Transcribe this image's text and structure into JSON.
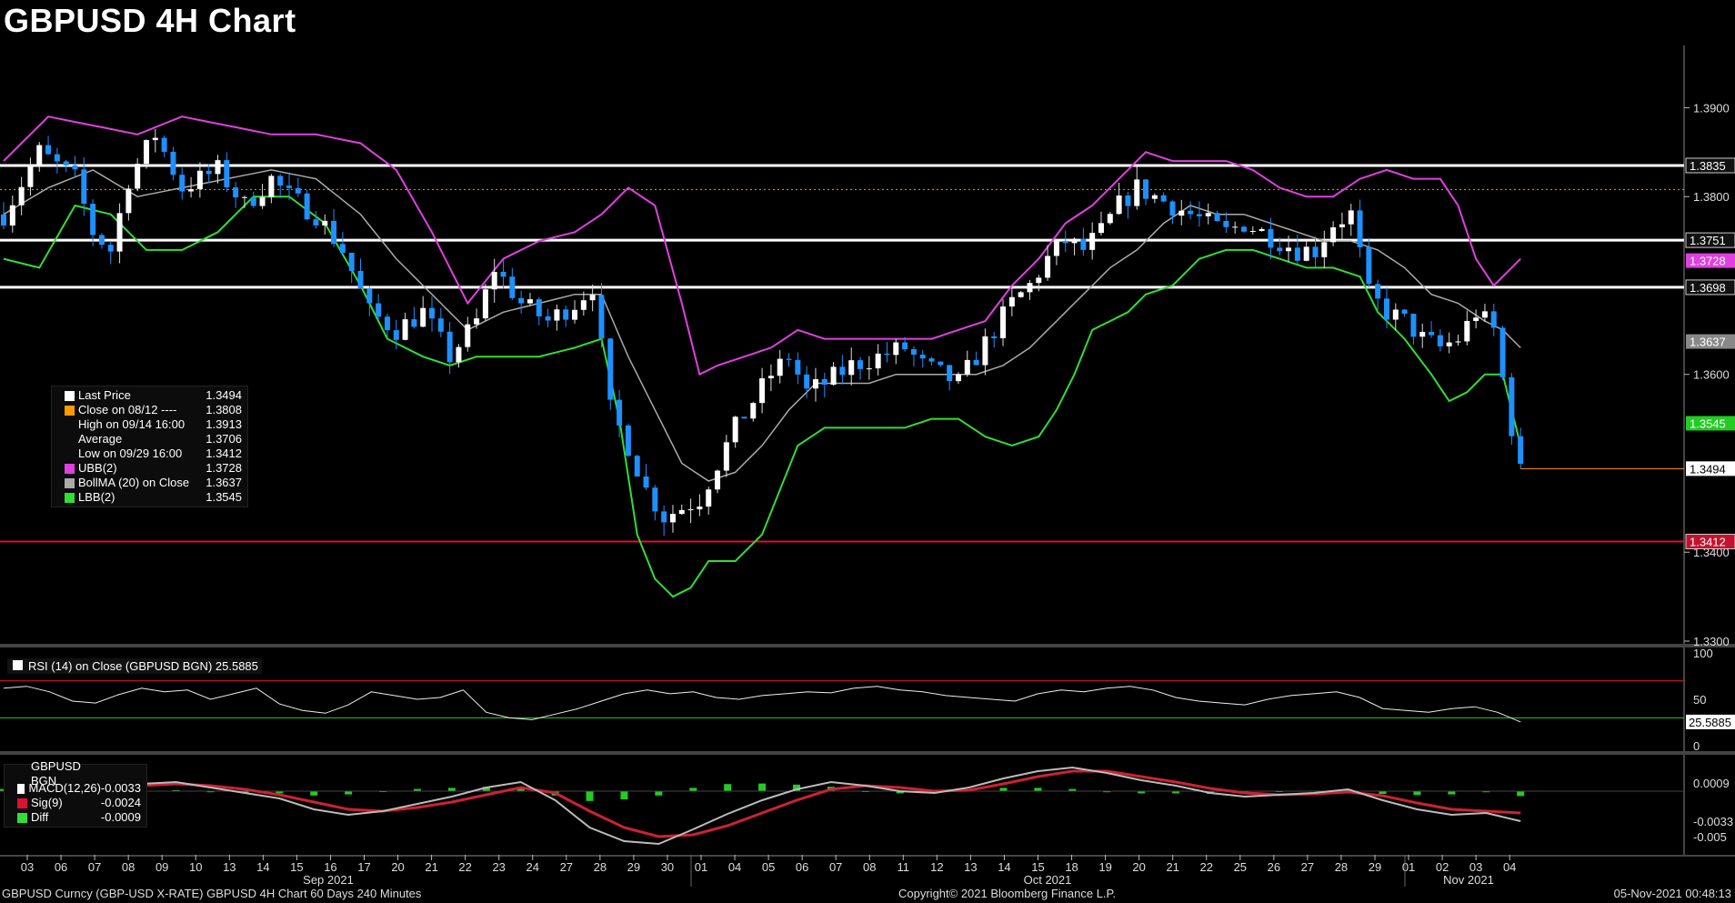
{
  "title": "GBPUSD 4H Chart",
  "footer": {
    "left": "GBPUSD Curncy (GBP-USD X-RATE) GBPUSD 4H Chart 60 Days 240 Minutes",
    "center": "Copyright© 2021 Bloomberg Finance L.P.",
    "right": "05-Nov-2021 00:48:13"
  },
  "colors": {
    "up": "#ffffff",
    "down": "#1e90ff",
    "ubb": "#e040e0",
    "lbb": "#33dd33",
    "bollma": "#aaaaaa",
    "support": "#dd1133",
    "resistance": "#ffffff",
    "close_line": "#ff9900"
  },
  "legend": [
    {
      "label": "Last Price",
      "value": "1.3494",
      "color": "#ffffff"
    },
    {
      "label": "Close on 08/12 ----",
      "value": "1.3808",
      "color": "#ff9900"
    },
    {
      "label": "High on 09/14 16:00",
      "value": "1.3913",
      "color": ""
    },
    {
      "label": "Average",
      "value": "1.3706",
      "color": ""
    },
    {
      "label": "Low on 09/29 16:00",
      "value": "1.3412",
      "color": ""
    },
    {
      "label": "UBB(2)",
      "value": "1.3728",
      "color": "#e040e0"
    },
    {
      "label": "BollMA (20)  on Close",
      "value": "1.3637",
      "color": "#aaaaaa"
    },
    {
      "label": "LBB(2)",
      "value": "1.3545",
      "color": "#33dd33"
    }
  ],
  "rsi_legend": "RSI (14)  on Close (GBPUSD BGN) 25.5885",
  "macd_legend": [
    {
      "label": "GBPUSD BGN",
      "value": "",
      "color": ""
    },
    {
      "label": "MACD(12,26)",
      "value": "-0.0033",
      "color": "#ffffff"
    },
    {
      "label": "Sig(9)",
      "value": "-0.0024",
      "color": "#dd1133"
    },
    {
      "label": "Diff",
      "value": "-0.0009",
      "color": "#33dd33"
    }
  ],
  "chart_data": {
    "type": "candlestick",
    "ylim": [
      1.33,
      1.397
    ],
    "y_ticks": [
      "1.3900",
      "1.3800",
      "1.3600",
      "1.3400",
      "1.3300"
    ],
    "x_ticks": [
      "03",
      "06",
      "07",
      "08",
      "09",
      "10",
      "13",
      "14",
      "15",
      "16",
      "17",
      "20",
      "21",
      "22",
      "23",
      "24",
      "27",
      "28",
      "29",
      "30",
      "01",
      "04",
      "05",
      "06",
      "07",
      "08",
      "11",
      "12",
      "13",
      "14",
      "15",
      "18",
      "19",
      "20",
      "21",
      "22",
      "25",
      "26",
      "27",
      "28",
      "29",
      "01",
      "02",
      "03",
      "04"
    ],
    "month_labels": [
      "Sep 2021",
      "Oct 2021",
      "Nov 2021"
    ],
    "horizontal_lines": [
      {
        "value": 1.3835,
        "label": "1.3835",
        "style": "resistance"
      },
      {
        "value": 1.3751,
        "label": "1.3751",
        "style": "resistance"
      },
      {
        "value": 1.3698,
        "label": "1.3698",
        "style": "resistance"
      },
      {
        "value": 1.3412,
        "label": "1.3412",
        "style": "support"
      },
      {
        "value": 1.3808,
        "label": "",
        "style": "close"
      }
    ],
    "price_tags": [
      {
        "value": 1.3728,
        "label": "1.3728",
        "color": "#e040e0"
      },
      {
        "value": 1.3637,
        "label": "1.3637",
        "color": "#888888"
      },
      {
        "value": 1.3545,
        "label": "1.3545",
        "color": "#22cc22"
      },
      {
        "value": 1.3494,
        "label": "1.3494",
        "color": "#ffffff"
      }
    ],
    "close_path": [
      [
        0,
        1.378
      ],
      [
        4,
        1.385
      ],
      [
        8,
        1.382
      ],
      [
        10,
        1.376
      ],
      [
        12,
        1.374
      ],
      [
        14,
        1.382
      ],
      [
        17,
        1.387
      ],
      [
        20,
        1.381
      ],
      [
        24,
        1.383
      ],
      [
        27,
        1.379
      ],
      [
        30,
        1.382
      ],
      [
        32,
        1.38
      ],
      [
        35,
        1.378
      ],
      [
        38,
        1.374
      ],
      [
        41,
        1.367
      ],
      [
        44,
        1.365
      ],
      [
        47,
        1.367
      ],
      [
        50,
        1.362
      ],
      [
        53,
        1.366
      ],
      [
        55,
        1.372
      ],
      [
        58,
        1.368
      ],
      [
        61,
        1.366
      ],
      [
        64,
        1.368
      ],
      [
        66,
        1.37
      ],
      [
        68,
        1.356
      ],
      [
        70,
        1.352
      ],
      [
        72,
        1.347
      ],
      [
        74,
        1.344
      ],
      [
        76,
        1.345
      ],
      [
        78,
        1.346
      ],
      [
        80,
        1.35
      ],
      [
        82,
        1.354
      ],
      [
        84,
        1.357
      ],
      [
        86,
        1.36
      ],
      [
        88,
        1.362
      ],
      [
        90,
        1.358
      ],
      [
        92,
        1.359
      ],
      [
        95,
        1.361
      ],
      [
        98,
        1.362
      ],
      [
        101,
        1.363
      ],
      [
        103,
        1.361
      ],
      [
        105,
        1.36
      ],
      [
        107,
        1.359
      ],
      [
        109,
        1.362
      ],
      [
        111,
        1.365
      ],
      [
        113,
        1.368
      ],
      [
        115,
        1.37
      ],
      [
        117,
        1.373
      ],
      [
        119,
        1.375
      ],
      [
        121,
        1.374
      ],
      [
        123,
        1.376
      ],
      [
        125,
        1.379
      ],
      [
        127,
        1.381
      ],
      [
        129,
        1.38
      ],
      [
        131,
        1.379
      ],
      [
        133,
        1.378
      ],
      [
        135,
        1.377
      ],
      [
        137,
        1.376
      ],
      [
        139,
        1.377
      ],
      [
        141,
        1.376
      ],
      [
        143,
        1.375
      ],
      [
        145,
        1.374
      ],
      [
        147,
        1.374
      ],
      [
        149,
        1.377
      ],
      [
        151,
        1.378
      ],
      [
        153,
        1.369
      ],
      [
        155,
        1.367
      ],
      [
        157,
        1.366
      ],
      [
        159,
        1.364
      ],
      [
        161,
        1.363
      ],
      [
        163,
        1.364
      ],
      [
        165,
        1.367
      ],
      [
        167,
        1.365
      ],
      [
        169,
        1.354
      ],
      [
        170,
        1.349
      ]
    ],
    "ubb_path": [
      [
        0,
        1.384
      ],
      [
        5,
        1.389
      ],
      [
        10,
        1.388
      ],
      [
        15,
        1.387
      ],
      [
        20,
        1.389
      ],
      [
        25,
        1.388
      ],
      [
        30,
        1.387
      ],
      [
        35,
        1.387
      ],
      [
        40,
        1.386
      ],
      [
        44,
        1.383
      ],
      [
        48,
        1.376
      ],
      [
        52,
        1.368
      ],
      [
        56,
        1.373
      ],
      [
        60,
        1.375
      ],
      [
        64,
        1.376
      ],
      [
        67,
        1.378
      ],
      [
        70,
        1.381
      ],
      [
        73,
        1.379
      ],
      [
        76,
        1.368
      ],
      [
        78,
        1.36
      ],
      [
        80,
        1.361
      ],
      [
        83,
        1.362
      ],
      [
        86,
        1.363
      ],
      [
        89,
        1.365
      ],
      [
        92,
        1.364
      ],
      [
        95,
        1.364
      ],
      [
        98,
        1.364
      ],
      [
        101,
        1.364
      ],
      [
        104,
        1.364
      ],
      [
        107,
        1.365
      ],
      [
        110,
        1.366
      ],
      [
        113,
        1.37
      ],
      [
        116,
        1.373
      ],
      [
        119,
        1.377
      ],
      [
        122,
        1.379
      ],
      [
        125,
        1.382
      ],
      [
        128,
        1.385
      ],
      [
        131,
        1.384
      ],
      [
        134,
        1.384
      ],
      [
        137,
        1.384
      ],
      [
        140,
        1.383
      ],
      [
        143,
        1.381
      ],
      [
        146,
        1.38
      ],
      [
        149,
        1.38
      ],
      [
        152,
        1.382
      ],
      [
        155,
        1.383
      ],
      [
        158,
        1.382
      ],
      [
        161,
        1.382
      ],
      [
        163,
        1.379
      ],
      [
        165,
        1.373
      ],
      [
        167,
        1.37
      ],
      [
        170,
        1.373
      ]
    ],
    "lbb_path": [
      [
        0,
        1.373
      ],
      [
        4,
        1.372
      ],
      [
        8,
        1.379
      ],
      [
        12,
        1.378
      ],
      [
        16,
        1.374
      ],
      [
        20,
        1.374
      ],
      [
        24,
        1.376
      ],
      [
        28,
        1.38
      ],
      [
        32,
        1.38
      ],
      [
        36,
        1.377
      ],
      [
        40,
        1.37
      ],
      [
        43,
        1.364
      ],
      [
        47,
        1.362
      ],
      [
        50,
        1.361
      ],
      [
        53,
        1.362
      ],
      [
        56,
        1.362
      ],
      [
        60,
        1.362
      ],
      [
        64,
        1.363
      ],
      [
        67,
        1.364
      ],
      [
        69,
        1.355
      ],
      [
        71,
        1.342
      ],
      [
        73,
        1.337
      ],
      [
        75,
        1.335
      ],
      [
        77,
        1.336
      ],
      [
        79,
        1.339
      ],
      [
        82,
        1.339
      ],
      [
        85,
        1.342
      ],
      [
        87,
        1.347
      ],
      [
        89,
        1.352
      ],
      [
        92,
        1.354
      ],
      [
        95,
        1.354
      ],
      [
        98,
        1.354
      ],
      [
        101,
        1.354
      ],
      [
        104,
        1.355
      ],
      [
        107,
        1.355
      ],
      [
        110,
        1.353
      ],
      [
        113,
        1.352
      ],
      [
        116,
        1.353
      ],
      [
        118,
        1.356
      ],
      [
        120,
        1.36
      ],
      [
        122,
        1.365
      ],
      [
        124,
        1.366
      ],
      [
        126,
        1.367
      ],
      [
        128,
        1.369
      ],
      [
        131,
        1.37
      ],
      [
        134,
        1.373
      ],
      [
        137,
        1.374
      ],
      [
        140,
        1.374
      ],
      [
        143,
        1.373
      ],
      [
        146,
        1.372
      ],
      [
        149,
        1.372
      ],
      [
        152,
        1.371
      ],
      [
        154,
        1.367
      ],
      [
        157,
        1.364
      ],
      [
        160,
        1.36
      ],
      [
        162,
        1.357
      ],
      [
        164,
        1.358
      ],
      [
        166,
        1.36
      ],
      [
        168,
        1.36
      ],
      [
        170,
        1.352
      ]
    ],
    "bollma_path": [
      [
        0,
        1.378
      ],
      [
        5,
        1.381
      ],
      [
        10,
        1.383
      ],
      [
        15,
        1.38
      ],
      [
        20,
        1.381
      ],
      [
        25,
        1.382
      ],
      [
        30,
        1.383
      ],
      [
        35,
        1.382
      ],
      [
        40,
        1.378
      ],
      [
        44,
        1.373
      ],
      [
        48,
        1.369
      ],
      [
        52,
        1.365
      ],
      [
        56,
        1.367
      ],
      [
        60,
        1.368
      ],
      [
        64,
        1.369
      ],
      [
        67,
        1.369
      ],
      [
        70,
        1.362
      ],
      [
        73,
        1.356
      ],
      [
        76,
        1.35
      ],
      [
        79,
        1.348
      ],
      [
        82,
        1.349
      ],
      [
        85,
        1.352
      ],
      [
        88,
        1.356
      ],
      [
        91,
        1.359
      ],
      [
        94,
        1.359
      ],
      [
        97,
        1.359
      ],
      [
        100,
        1.36
      ],
      [
        103,
        1.36
      ],
      [
        106,
        1.36
      ],
      [
        109,
        1.36
      ],
      [
        112,
        1.361
      ],
      [
        115,
        1.363
      ],
      [
        118,
        1.366
      ],
      [
        121,
        1.369
      ],
      [
        124,
        1.372
      ],
      [
        127,
        1.374
      ],
      [
        130,
        1.377
      ],
      [
        133,
        1.379
      ],
      [
        136,
        1.378
      ],
      [
        139,
        1.378
      ],
      [
        142,
        1.377
      ],
      [
        145,
        1.376
      ],
      [
        148,
        1.375
      ],
      [
        151,
        1.375
      ],
      [
        154,
        1.374
      ],
      [
        157,
        1.372
      ],
      [
        160,
        1.369
      ],
      [
        163,
        1.368
      ],
      [
        166,
        1.366
      ],
      [
        168,
        1.365
      ],
      [
        170,
        1.363
      ]
    ],
    "rsi": {
      "ylim": [
        0,
        100
      ],
      "ticks": [
        "100",
        "50",
        "0"
      ],
      "upper": 70,
      "lower": 30,
      "last": "25.5885",
      "values": [
        62,
        64,
        58,
        48,
        46,
        55,
        62,
        58,
        60,
        50,
        56,
        62,
        45,
        38,
        35,
        44,
        58,
        54,
        50,
        52,
        60,
        36,
        30,
        28,
        34,
        40,
        48,
        56,
        60,
        56,
        58,
        52,
        50,
        54,
        56,
        58,
        57,
        62,
        64,
        60,
        58,
        54,
        52,
        50,
        48,
        56,
        60,
        58,
        62,
        64,
        60,
        52,
        48,
        46,
        44,
        50,
        54,
        56,
        58,
        52,
        40,
        38,
        36,
        40,
        42,
        36,
        25.6
      ]
    },
    "macd": {
      "ticks": [
        "0.0009",
        "-0.0033",
        "-0.005"
      ],
      "macd_last": "-0.0033",
      "sig_last": "-0.0024",
      "diff_last": "-0.0009",
      "macd": [
        0.0008,
        0.0012,
        0.0006,
        0.0002,
        0.0008,
        0.001,
        0.0004,
        -0.0002,
        -0.0008,
        -0.002,
        -0.0026,
        -0.0022,
        -0.0014,
        -0.0006,
        0.0004,
        0.001,
        -0.001,
        -0.004,
        -0.0055,
        -0.0058,
        -0.0042,
        -0.0025,
        -0.001,
        0.0002,
        0.001,
        0.0006,
        0.0,
        -0.0002,
        0.0004,
        0.0014,
        0.0022,
        0.0026,
        0.002,
        0.0012,
        0.0006,
        -0.0002,
        -0.0006,
        -0.0004,
        -0.0002,
        0.0002,
        -0.001,
        -0.002,
        -0.0026,
        -0.0024,
        -0.0033
      ],
      "sig": [
        0.0004,
        0.0008,
        0.0008,
        0.0005,
        0.0006,
        0.0008,
        0.0006,
        0.0002,
        -0.0004,
        -0.0012,
        -0.002,
        -0.0022,
        -0.0018,
        -0.0012,
        -0.0004,
        0.0004,
        -0.0002,
        -0.0022,
        -0.004,
        -0.005,
        -0.0048,
        -0.0038,
        -0.0024,
        -0.001,
        0.0002,
        0.0006,
        0.0004,
        0.0,
        0.0001,
        0.0008,
        0.0016,
        0.0022,
        0.0022,
        0.0016,
        0.001,
        0.0003,
        -0.0002,
        -0.0004,
        -0.0003,
        -0.0001,
        -0.0005,
        -0.0013,
        -0.002,
        -0.0022,
        -0.0024
      ]
    }
  }
}
